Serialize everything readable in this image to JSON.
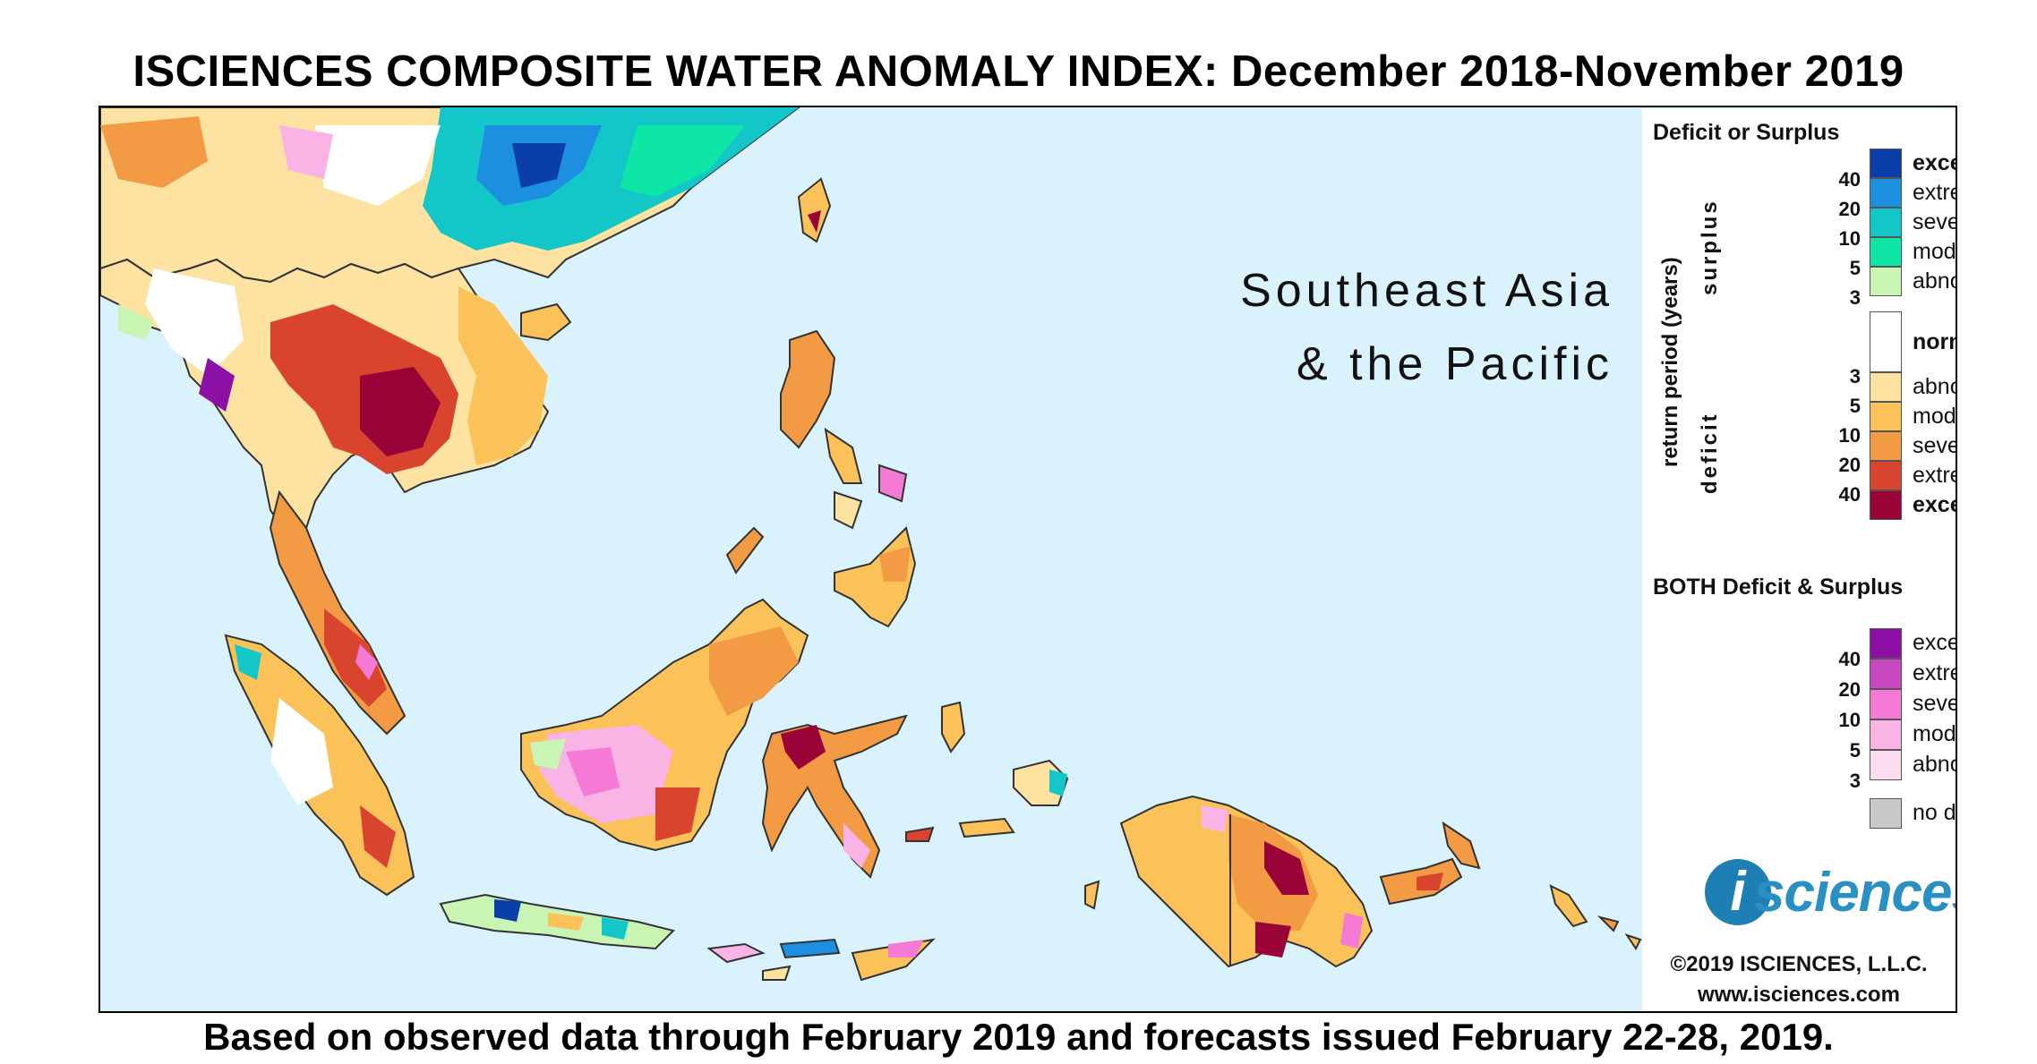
{
  "title": "ISCIENCES COMPOSITE WATER ANOMALY INDEX: December 2018-November 2019",
  "footer": "Based on observed data through February 2019 and forecasts issued February 22-28, 2019.",
  "region_label": {
    "line1": "Southeast Asia",
    "line2": "& the Pacific"
  },
  "legend": {
    "heading": "Deficit or Surplus",
    "axis_label": "return period (years)",
    "surplus_label": "surplus",
    "deficit_label": "deficit",
    "surplus": [
      {
        "label": "exceptional",
        "num": "40",
        "color": "#0a3ea8"
      },
      {
        "label": "extreme",
        "num": "20",
        "color": "#1c8fe0"
      },
      {
        "label": "severe",
        "num": "10",
        "color": "#13c7c9"
      },
      {
        "label": "moderate",
        "num": "5",
        "color": "#0ee6a6"
      },
      {
        "label": "abnormal",
        "num": "3",
        "color": "#c9f5b4"
      }
    ],
    "normal": {
      "label": "normal",
      "color": "#ffffff"
    },
    "deficit": [
      {
        "label": "abnormal",
        "num": "3",
        "color": "#fde2a2"
      },
      {
        "label": "moderate",
        "num": "5",
        "color": "#fbc25a"
      },
      {
        "label": "severe",
        "num": "10",
        "color": "#f39a44"
      },
      {
        "label": "extreme",
        "num": "20",
        "color": "#d8442e"
      },
      {
        "label": "exceptional",
        "num": "40",
        "color": "#9a0337"
      }
    ],
    "both_heading": "BOTH Deficit & Surplus",
    "both": [
      {
        "label": "exceptional",
        "num": "40",
        "color": "#8c10a6"
      },
      {
        "label": "extreme",
        "num": "20",
        "color": "#c748c0"
      },
      {
        "label": "severe",
        "num": "10",
        "color": "#f57ad6"
      },
      {
        "label": "moderate",
        "num": "5",
        "color": "#f9b4e5"
      },
      {
        "label": "abnormal",
        "num": "3",
        "color": "#fddcf0"
      }
    ],
    "no_data": {
      "label": "no data",
      "color": "#c8c8c8"
    }
  },
  "logo": {
    "i": "i",
    "text": "sciences"
  },
  "copyright": "©2019 ISCIENCES, L.L.C.",
  "website": "www.isciences.com",
  "colors": {
    "ocean": "#daf2fb",
    "border": "#333333"
  }
}
